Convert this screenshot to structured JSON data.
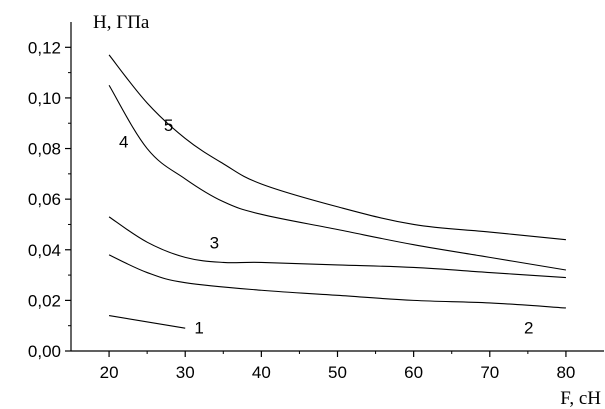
{
  "chart_data": {
    "type": "line",
    "title": "",
    "xlabel": "F, cH",
    "ylabel": "H, ГПа",
    "xlim": [
      15,
      85
    ],
    "ylim": [
      0,
      0.13
    ],
    "xticks": [
      20,
      30,
      40,
      50,
      60,
      70,
      80
    ],
    "yticks": [
      0.0,
      0.02,
      0.04,
      0.06,
      0.08,
      0.1,
      0.12
    ],
    "xtick_labels": [
      "20",
      "30",
      "40",
      "50",
      "60",
      "70",
      "80"
    ],
    "ytick_labels": [
      "0,00",
      "0,02",
      "0,04",
      "0,06",
      "0,08",
      "0,10",
      "0,12"
    ],
    "grid": false,
    "legend": "none",
    "series": [
      {
        "label": "1",
        "x": [
          20,
          30
        ],
        "y": [
          0.014,
          0.009
        ]
      },
      {
        "label": "2",
        "x": [
          20,
          25,
          30,
          40,
          50,
          60,
          70,
          80
        ],
        "y": [
          0.038,
          0.031,
          0.027,
          0.024,
          0.022,
          0.02,
          0.019,
          0.017
        ]
      },
      {
        "label": "3",
        "x": [
          20,
          25,
          30,
          35,
          40,
          50,
          60,
          70,
          80
        ],
        "y": [
          0.053,
          0.043,
          0.037,
          0.035,
          0.035,
          0.034,
          0.033,
          0.031,
          0.029
        ]
      },
      {
        "label": "4",
        "x": [
          20,
          25,
          30,
          35,
          40,
          50,
          60,
          70,
          80
        ],
        "y": [
          0.105,
          0.08,
          0.068,
          0.059,
          0.054,
          0.048,
          0.042,
          0.037,
          0.032
        ]
      },
      {
        "label": "5",
        "x": [
          20,
          25,
          30,
          35,
          40,
          50,
          60,
          70,
          80
        ],
        "y": [
          0.117,
          0.098,
          0.084,
          0.074,
          0.066,
          0.057,
          0.05,
          0.047,
          0.044
        ]
      }
    ]
  }
}
